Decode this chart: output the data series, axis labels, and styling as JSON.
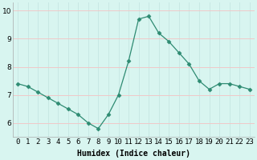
{
  "x": [
    0,
    1,
    2,
    3,
    4,
    5,
    6,
    7,
    8,
    9,
    10,
    11,
    12,
    13,
    14,
    15,
    16,
    17,
    18,
    19,
    20,
    21,
    22,
    23
  ],
  "y": [
    7.4,
    7.3,
    7.1,
    6.9,
    6.7,
    6.5,
    6.3,
    6.0,
    5.8,
    6.3,
    7.0,
    8.2,
    9.7,
    9.8,
    9.2,
    8.9,
    8.5,
    8.1,
    7.5,
    7.2,
    7.4,
    7.4,
    7.3,
    7.2
  ],
  "line_color": "#2e8b72",
  "marker": "D",
  "marker_size": 2.5,
  "bg_color": "#d8f5f0",
  "grid_color": "#c8e8e4",
  "xlabel": "Humidex (Indice chaleur)",
  "ylim": [
    5.5,
    10.3
  ],
  "xlim": [
    -0.5,
    23.5
  ],
  "yticks": [
    6,
    7,
    8,
    9,
    10
  ],
  "xticks": [
    0,
    1,
    2,
    3,
    4,
    5,
    6,
    7,
    8,
    9,
    10,
    11,
    12,
    13,
    14,
    15,
    16,
    17,
    18,
    19,
    20,
    21,
    22,
    23
  ],
  "xtick_labels": [
    "0",
    "1",
    "2",
    "3",
    "4",
    "5",
    "6",
    "7",
    "8",
    "9",
    "10",
    "11",
    "12",
    "13",
    "14",
    "15",
    "16",
    "17",
    "18",
    "19",
    "20",
    "21",
    "22",
    "23"
  ],
  "xlabel_fontsize": 7,
  "tick_fontsize": 6.5
}
